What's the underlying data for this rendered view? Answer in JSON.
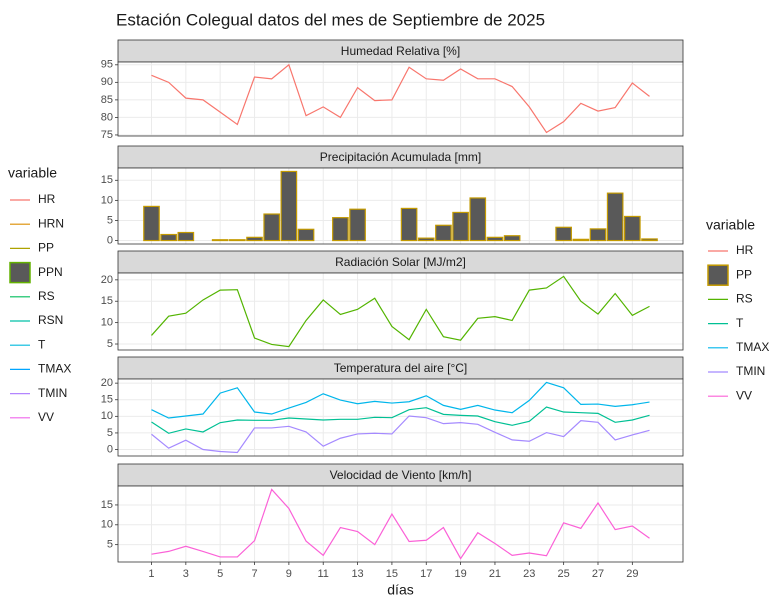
{
  "title": "Estación Colegual datos del mes de Septiembre de 2025",
  "chart_data": [
    {
      "type": "line",
      "title": "Humedad Relativa [%]",
      "x": [
        1,
        2,
        3,
        4,
        5,
        6,
        7,
        8,
        9,
        10,
        11,
        12,
        13,
        14,
        15,
        16,
        17,
        18,
        19,
        20,
        21,
        22,
        23,
        24,
        25,
        26,
        27,
        28,
        29,
        30
      ],
      "xlim": [
        -0.95,
        31.95
      ],
      "xticks": [
        1,
        3,
        5,
        7,
        9,
        11,
        13,
        15,
        17,
        19,
        21,
        23,
        25,
        27,
        29
      ],
      "ylim": [
        74.7,
        95.8
      ],
      "yticks": [
        75,
        80,
        85,
        90,
        95
      ],
      "grid": true,
      "series": [
        {
          "name": "HR",
          "color": "#F8766D",
          "values": [
            92,
            90,
            85.5,
            85,
            81.5,
            78,
            91.5,
            91,
            95,
            80.5,
            83,
            80,
            88.5,
            84.8,
            85,
            94.3,
            91,
            90.6,
            93.8,
            91,
            91,
            88.8,
            83,
            75.7,
            78.8,
            84,
            81.8,
            82.8,
            89.8,
            86
          ]
        }
      ]
    },
    {
      "type": "bar",
      "title": "Precipitación Acumulada [mm]",
      "x": [
        1,
        2,
        3,
        4,
        5,
        6,
        7,
        8,
        9,
        10,
        11,
        12,
        13,
        14,
        15,
        16,
        17,
        18,
        19,
        20,
        21,
        22,
        23,
        24,
        25,
        26,
        27,
        28,
        29,
        30
      ],
      "xlim": [
        -0.95,
        31.95
      ],
      "xticks": [
        1,
        3,
        5,
        7,
        9,
        11,
        13,
        15,
        17,
        19,
        21,
        23,
        25,
        27,
        29
      ],
      "ylim": [
        -0.86,
        18.06
      ],
      "yticks": [
        0,
        5,
        10,
        15
      ],
      "grid": true,
      "series": [
        {
          "name": "PP",
          "color": "#C49A00",
          "fill": "#595959",
          "values": [
            8.5,
            1.5,
            2,
            0,
            0.2,
            0.2,
            0.8,
            6.6,
            17.2,
            2.8,
            0,
            5.7,
            7.8,
            0,
            0,
            8,
            0.6,
            3.8,
            7,
            10.6,
            0.8,
            1.2,
            0,
            0,
            3.3,
            0.3,
            2.9,
            11.8,
            6,
            0.4
          ]
        }
      ]
    },
    {
      "type": "line",
      "title": "Radiación Solar [MJ/m2]",
      "x": [
        1,
        2,
        3,
        4,
        5,
        6,
        7,
        8,
        9,
        10,
        11,
        12,
        13,
        14,
        15,
        16,
        17,
        18,
        19,
        20,
        21,
        22,
        23,
        24,
        25,
        26,
        27,
        28,
        29,
        30
      ],
      "xlim": [
        -0.95,
        31.95
      ],
      "xticks": [
        1,
        3,
        5,
        7,
        9,
        11,
        13,
        15,
        17,
        19,
        21,
        23,
        25,
        27,
        29
      ],
      "ylim": [
        3.6,
        21.6
      ],
      "yticks": [
        5,
        10,
        15,
        20
      ],
      "grid": true,
      "series": [
        {
          "name": "RS",
          "color": "#53B400",
          "values": [
            7,
            11.5,
            12.2,
            15.3,
            17.6,
            17.7,
            6.4,
            4.9,
            4.4,
            10.5,
            15.3,
            11.9,
            13.1,
            15.7,
            9.1,
            6,
            13.1,
            6.7,
            5.9,
            11,
            11.4,
            10.5,
            17.6,
            18.1,
            20.8,
            15,
            12,
            16.8,
            11.7,
            13.8
          ]
        }
      ]
    },
    {
      "type": "line",
      "title": "Temperatura del aire [°C]",
      "x": [
        1,
        2,
        3,
        4,
        5,
        6,
        7,
        8,
        9,
        10,
        11,
        12,
        13,
        14,
        15,
        16,
        17,
        18,
        19,
        20,
        21,
        22,
        23,
        24,
        25,
        26,
        27,
        28,
        29,
        30
      ],
      "xlim": [
        -0.95,
        31.95
      ],
      "xticks": [
        1,
        3,
        5,
        7,
        9,
        11,
        13,
        15,
        17,
        19,
        21,
        23,
        25,
        27,
        29
      ],
      "ylim": [
        -1.95,
        21.25
      ],
      "yticks": [
        0,
        5,
        10,
        15,
        20
      ],
      "grid": true,
      "series": [
        {
          "name": "T",
          "color": "#00C094",
          "values": [
            8.3,
            4.9,
            6.2,
            5.3,
            8.1,
            8.9,
            8.8,
            8.8,
            9.5,
            9.2,
            8.9,
            9.1,
            9.1,
            9.7,
            9.6,
            12,
            12.6,
            10.6,
            10.3,
            10.1,
            8.4,
            7.3,
            8.5,
            12.8,
            11.3,
            11.1,
            10.9,
            8.2,
            8.9,
            10.3
          ]
        },
        {
          "name": "TMAX",
          "color": "#00B6EB",
          "values": [
            12,
            9.5,
            10.1,
            10.7,
            17,
            18.6,
            11.3,
            10.7,
            12.5,
            14.2,
            16.8,
            14.9,
            13.8,
            14.5,
            14,
            14.4,
            16.2,
            13.3,
            12.1,
            13.3,
            11.9,
            11.1,
            14.8,
            20.2,
            18.6,
            13.6,
            13.7,
            13,
            13.5,
            14.3
          ]
        },
        {
          "name": "TMIN",
          "color": "#A58AFF",
          "values": [
            4.6,
            0.4,
            2.8,
            0,
            -0.6,
            -0.9,
            6.5,
            6.5,
            7,
            5.3,
            1,
            3.4,
            4.7,
            4.9,
            4.7,
            10.1,
            9.6,
            7.8,
            8.1,
            7.6,
            5.2,
            2.9,
            2.5,
            5.1,
            3.9,
            8.7,
            8.2,
            2.9,
            4.4,
            5.8
          ]
        }
      ]
    },
    {
      "type": "line",
      "title": "Velocidad de Viento [km/h]",
      "xlabel": "días",
      "x": [
        1,
        2,
        3,
        4,
        5,
        6,
        7,
        8,
        9,
        10,
        11,
        12,
        13,
        14,
        15,
        16,
        17,
        18,
        19,
        20,
        21,
        22,
        23,
        24,
        25,
        26,
        27,
        28,
        29,
        30
      ],
      "xlim": [
        -0.95,
        31.95
      ],
      "xticks": [
        1,
        3,
        5,
        7,
        9,
        11,
        13,
        15,
        17,
        19,
        21,
        23,
        25,
        27,
        29
      ],
      "ylim": [
        0.63,
        19.77
      ],
      "yticks": [
        5,
        10,
        15
      ],
      "grid": true,
      "series": [
        {
          "name": "VV",
          "color": "#FB61D7",
          "values": [
            2.6,
            3.3,
            4.6,
            3.3,
            1.9,
            1.9,
            6,
            18.9,
            14.1,
            5.9,
            2.3,
            9.3,
            8.3,
            5,
            12.7,
            5.8,
            6.1,
            9.3,
            1.5,
            8,
            5.3,
            2.3,
            2.9,
            2.2,
            10.5,
            9.1,
            15.5,
            8.8,
            9.7,
            6.6
          ]
        }
      ]
    }
  ],
  "legends": [
    {
      "title": "variable",
      "entries": [
        {
          "name": "HR",
          "color": "#F8766D",
          "key": "line"
        },
        {
          "name": "HRN",
          "color": "#DB8E00",
          "key": "line"
        },
        {
          "name": "PP",
          "color": "#AEA200",
          "key": "line"
        },
        {
          "name": "PPN",
          "color": "#64B200",
          "key": "box",
          "fill": "#595959"
        },
        {
          "name": "RS",
          "color": "#00BD5C",
          "key": "line"
        },
        {
          "name": "RSN",
          "color": "#00C1A7",
          "key": "line"
        },
        {
          "name": "T",
          "color": "#00BADE",
          "key": "line"
        },
        {
          "name": "TMAX",
          "color": "#00A6FF",
          "key": "line"
        },
        {
          "name": "TMIN",
          "color": "#B385FF",
          "key": "line"
        },
        {
          "name": "VV",
          "color": "#EF67EB",
          "key": "line"
        }
      ]
    },
    {
      "title": "variable",
      "entries": [
        {
          "name": "HR",
          "color": "#F8766D",
          "key": "line"
        },
        {
          "name": "PP",
          "color": "#C49A00",
          "key": "box",
          "fill": "#595959"
        },
        {
          "name": "RS",
          "color": "#53B400",
          "key": "line"
        },
        {
          "name": "T",
          "color": "#00C094",
          "key": "line"
        },
        {
          "name": "TMAX",
          "color": "#00B6EB",
          "key": "line"
        },
        {
          "name": "TMIN",
          "color": "#A58AFF",
          "key": "line"
        },
        {
          "name": "VV",
          "color": "#FB61D7",
          "key": "line"
        }
      ]
    }
  ]
}
